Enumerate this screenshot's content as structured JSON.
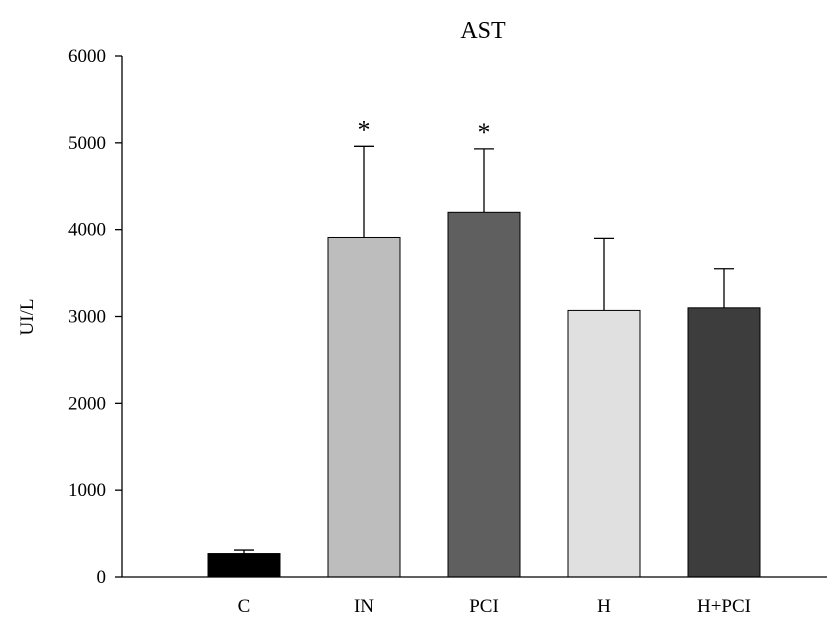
{
  "chart_data": {
    "type": "bar",
    "title": "AST",
    "xlabel": "",
    "ylabel": "UI/L",
    "ylim": [
      0,
      6000
    ],
    "yticks": [
      0,
      1000,
      2000,
      3000,
      4000,
      5000,
      6000
    ],
    "grid": false,
    "categories": [
      "C",
      "IN",
      "PCI",
      "H",
      "H+PCI"
    ],
    "values": [
      270,
      3910,
      4200,
      3070,
      3100
    ],
    "error": [
      40,
      1050,
      730,
      830,
      450
    ],
    "significance": [
      "",
      "*",
      "*",
      "",
      ""
    ],
    "colors": [
      "#000000",
      "#bdbdbd",
      "#5f5f5f",
      "#e0e0e0",
      "#3d3d3d"
    ]
  }
}
